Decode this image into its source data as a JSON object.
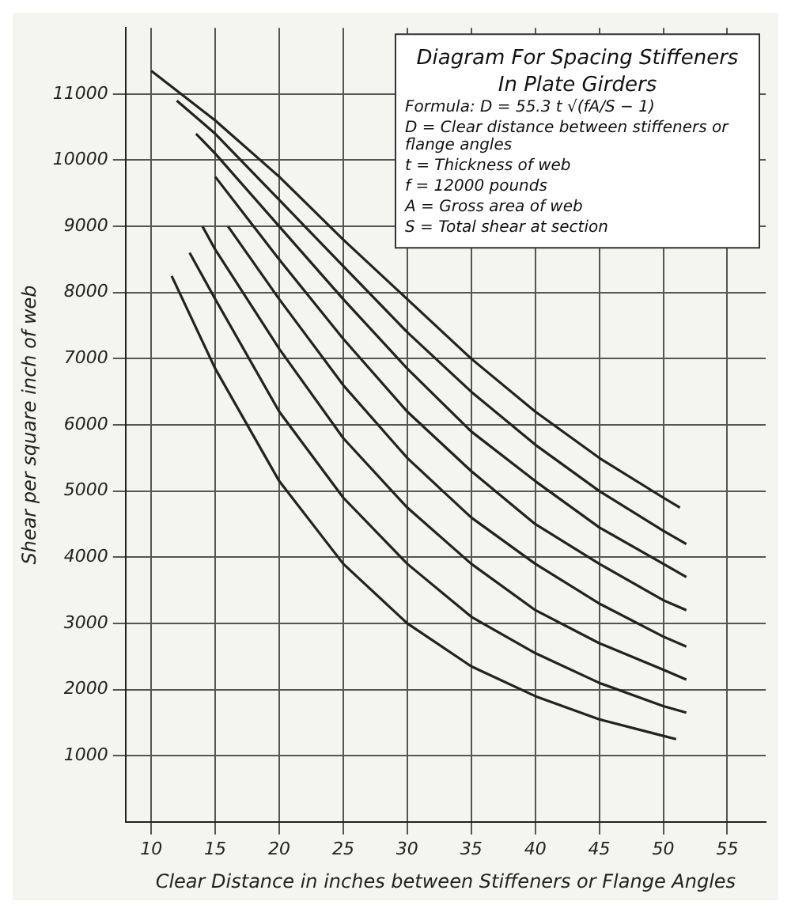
{
  "chart_data": {
    "type": "line",
    "title": "Diagram For Spacing Stiffeners In Plate Girders",
    "xlabel": "Clear Distance in inches between Stiffeners or Flange Angles",
    "ylabel": "Shear per square inch of web",
    "annotations": [
      "Formula: D = 55.3 t √(fA/S − 1)",
      "D = Clear distance between stiffeners or flange angles",
      "t = Thickness of web",
      "f = 12000 pounds",
      "A = Gross area of web",
      "S = Total shear at section"
    ],
    "series": [
      {
        "color": "#222222",
        "x": [
          10,
          15,
          20,
          25,
          30,
          35,
          40,
          45,
          50,
          51.3
        ],
        "values": [
          11350,
          10600,
          9750,
          8800,
          7900,
          7000,
          6200,
          5500,
          4900,
          4750
        ]
      },
      {
        "color": "#222222",
        "x": [
          12,
          15,
          20,
          25,
          30,
          35,
          40,
          45,
          50,
          51.8
        ],
        "values": [
          10900,
          10400,
          9400,
          8400,
          7400,
          6500,
          5700,
          5000,
          4400,
          4200
        ]
      },
      {
        "color": "#222222",
        "x": [
          13.5,
          15,
          20,
          25,
          30,
          35,
          40,
          45,
          50,
          51.8
        ],
        "values": [
          10400,
          10100,
          9000,
          7900,
          6850,
          5900,
          5150,
          4450,
          3900,
          3700
        ]
      },
      {
        "color": "#222222",
        "x": [
          15,
          20,
          25,
          30,
          35,
          40,
          45,
          50,
          51.8
        ],
        "values": [
          9750,
          8500,
          7300,
          6200,
          5300,
          4500,
          3900,
          3350,
          3200
        ]
      },
      {
        "color": "#222222",
        "x": [
          16,
          20,
          25,
          30,
          35,
          40,
          45,
          50,
          51.8
        ],
        "values": [
          9000,
          7900,
          6600,
          5500,
          4600,
          3900,
          3300,
          2800,
          2650
        ]
      },
      {
        "color": "#222222",
        "x": [
          14,
          15,
          20,
          25,
          30,
          35,
          40,
          45,
          50,
          51.8
        ],
        "values": [
          9000,
          8650,
          7150,
          5800,
          4750,
          3900,
          3200,
          2700,
          2300,
          2150
        ]
      },
      {
        "color": "#222222",
        "x": [
          13,
          15,
          20,
          25,
          30,
          35,
          40,
          45,
          50,
          51.8
        ],
        "values": [
          8600,
          7900,
          6200,
          4900,
          3900,
          3100,
          2550,
          2100,
          1750,
          1650
        ]
      },
      {
        "color": "#222222",
        "x": [
          11.6,
          15,
          20,
          25,
          30,
          35,
          40,
          45,
          50,
          51
        ],
        "values": [
          8250,
          6850,
          5150,
          3900,
          3000,
          2350,
          1900,
          1550,
          1300,
          1250
        ]
      }
    ],
    "xlim": [
      8,
      58
    ],
    "xticks": [
      10,
      15,
      20,
      25,
      30,
      35,
      40,
      45,
      50,
      55
    ],
    "ylim": [
      0,
      12000
    ],
    "yticks": [
      1000,
      2000,
      3000,
      4000,
      5000,
      6000,
      7000,
      8000,
      9000,
      10000,
      11000
    ],
    "grid": true,
    "legend": false,
    "marker": "none",
    "line_style": "solid"
  }
}
